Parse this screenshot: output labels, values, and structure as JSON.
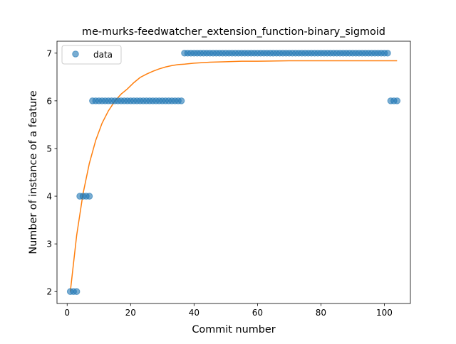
{
  "chart_data": {
    "type": "scatter",
    "title": "me-murks-feedwatcher_extension_function-binary_sigmoid",
    "xlabel": "Commit number",
    "ylabel": "Number of instance of a feature",
    "xlim": [
      -3.2,
      108.2
    ],
    "ylim": [
      1.75,
      7.25
    ],
    "xticks": [
      0,
      20,
      40,
      60,
      80,
      100
    ],
    "yticks": [
      2,
      3,
      4,
      5,
      6,
      7
    ],
    "legend": {
      "position": "top-left",
      "entries": [
        {
          "label": "data",
          "marker": "circle"
        }
      ]
    },
    "colors": {
      "data": "#1f77b4",
      "fit": "#ff7f0e"
    },
    "series": [
      {
        "name": "data",
        "kind": "scatter",
        "x": [
          1,
          2,
          3,
          4,
          5,
          6,
          7,
          8,
          9,
          10,
          11,
          12,
          13,
          14,
          15,
          16,
          17,
          18,
          19,
          20,
          21,
          22,
          23,
          24,
          25,
          26,
          27,
          28,
          29,
          30,
          31,
          32,
          33,
          34,
          35,
          36,
          37,
          38,
          39,
          40,
          41,
          42,
          43,
          44,
          45,
          46,
          47,
          48,
          49,
          50,
          51,
          52,
          53,
          54,
          55,
          56,
          57,
          58,
          59,
          60,
          61,
          62,
          63,
          64,
          65,
          66,
          67,
          68,
          69,
          70,
          71,
          72,
          73,
          74,
          75,
          76,
          77,
          78,
          79,
          80,
          81,
          82,
          83,
          84,
          85,
          86,
          87,
          88,
          89,
          90,
          91,
          92,
          93,
          94,
          95,
          96,
          97,
          98,
          99,
          100,
          101,
          102,
          103,
          104
        ],
        "y": [
          2,
          2,
          2,
          4,
          4,
          4,
          4,
          6,
          6,
          6,
          6,
          6,
          6,
          6,
          6,
          6,
          6,
          6,
          6,
          6,
          6,
          6,
          6,
          6,
          6,
          6,
          6,
          6,
          6,
          6,
          6,
          6,
          6,
          6,
          6,
          6,
          7,
          7,
          7,
          7,
          7,
          7,
          7,
          7,
          7,
          7,
          7,
          7,
          7,
          7,
          7,
          7,
          7,
          7,
          7,
          7,
          7,
          7,
          7,
          7,
          7,
          7,
          7,
          7,
          7,
          7,
          7,
          7,
          7,
          7,
          7,
          7,
          7,
          7,
          7,
          7,
          7,
          7,
          7,
          7,
          7,
          7,
          7,
          7,
          7,
          7,
          7,
          7,
          7,
          7,
          7,
          7,
          7,
          7,
          7,
          7,
          7,
          7,
          7,
          7,
          7,
          6,
          6,
          6
        ]
      },
      {
        "kind": "line",
        "x": [
          1,
          3,
          5,
          7,
          9,
          11,
          13,
          15,
          17,
          19,
          21,
          23,
          25,
          27,
          29,
          31,
          33,
          35,
          37,
          40,
          45,
          50,
          55,
          60,
          70,
          80,
          90,
          104
        ],
        "y": [
          2.0,
          3.18,
          4.05,
          4.69,
          5.17,
          5.53,
          5.79,
          5.99,
          6.14,
          6.25,
          6.38,
          6.49,
          6.56,
          6.62,
          6.67,
          6.71,
          6.74,
          6.76,
          6.77,
          6.79,
          6.81,
          6.82,
          6.83,
          6.83,
          6.84,
          6.84,
          6.84,
          6.84
        ]
      }
    ]
  }
}
